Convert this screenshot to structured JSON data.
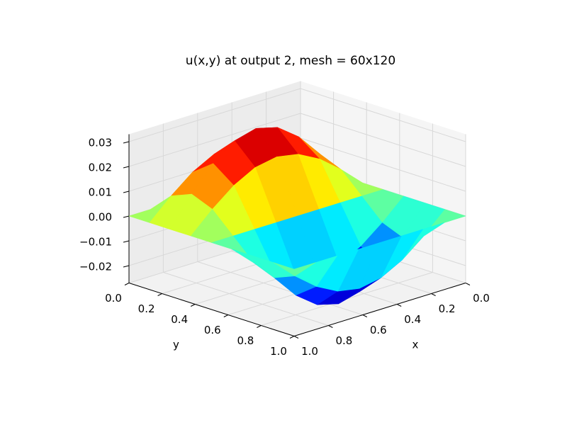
{
  "chart_data": {
    "type": "surface",
    "title": "u(x,y) at output 2, mesh = 60x120",
    "xlabel": "x",
    "ylabel": "y",
    "x": [
      0,
      0.125,
      0.25,
      0.375,
      0.5,
      0.625,
      0.75,
      0.875,
      1
    ],
    "y": [
      0,
      0.125,
      0.25,
      0.375,
      0.5,
      0.625,
      0.75,
      0.875,
      1
    ],
    "z": [
      [
        0,
        0,
        0,
        0,
        0,
        0,
        0,
        0,
        0
      ],
      [
        0,
        0.0081,
        0.015,
        0.0196,
        0.0212,
        0.0196,
        0.015,
        0.0081,
        0
      ],
      [
        0,
        0.0115,
        0.0212,
        0.0277,
        0.03,
        0.0277,
        0.0212,
        0.0115,
        0
      ],
      [
        0,
        0.0081,
        0.015,
        0.0196,
        0.0212,
        0.0196,
        0.015,
        0.0081,
        0
      ],
      [
        0,
        0,
        0,
        0,
        0,
        0,
        0,
        0,
        0
      ],
      [
        0,
        -0.0081,
        -0.015,
        -0.0196,
        -0.0212,
        -0.0196,
        -0.015,
        -0.0081,
        0
      ],
      [
        0,
        -0.0115,
        -0.0212,
        -0.0277,
        -0.03,
        -0.0277,
        -0.0212,
        -0.0115,
        0
      ],
      [
        0,
        -0.0081,
        -0.015,
        -0.0196,
        -0.0212,
        -0.0196,
        -0.015,
        -0.0081,
        0
      ],
      [
        0,
        0,
        0,
        0,
        0,
        0,
        0,
        0,
        0
      ]
    ],
    "colormap": "jet",
    "xlim": [
      0,
      1
    ],
    "ylim": [
      0,
      1
    ],
    "zlim": [
      -0.027,
      0.033
    ],
    "xticks": [
      {
        "value": 0,
        "label": "0.0"
      },
      0.2,
      0.4,
      0.6,
      0.8,
      {
        "value": 1,
        "label": "1.0"
      }
    ],
    "yticks": [
      {
        "value": 0,
        "label": "0.0"
      },
      0.2,
      0.4,
      0.6,
      0.8,
      {
        "value": 1,
        "label": "1.0"
      }
    ],
    "zticks": [
      {
        "value": -0.02,
        "label": "−0.02"
      },
      {
        "value": -0.01,
        "label": "−0.01"
      },
      {
        "value": 0,
        "label": "0.00"
      },
      {
        "value": 0.01,
        "label": "0.01"
      },
      {
        "value": 0.02,
        "label": "0.02"
      },
      {
        "value": 0.03,
        "label": "0.03"
      }
    ],
    "grid": true
  }
}
